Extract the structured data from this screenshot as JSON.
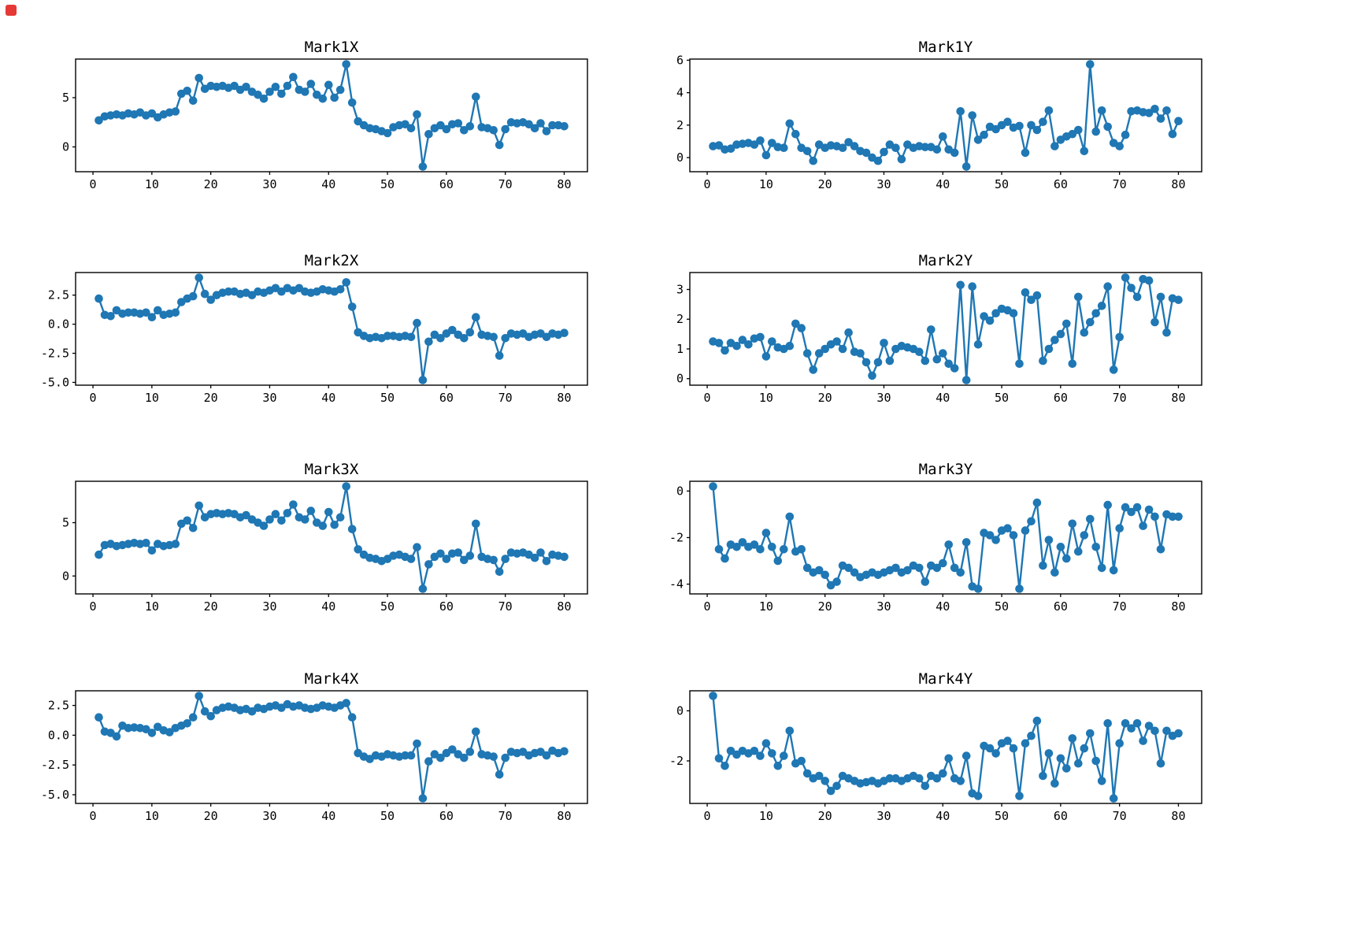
{
  "page": {
    "background": "#ffffff",
    "badge_color": "#e53935"
  },
  "chart_data": [
    {
      "id": "mark1x",
      "title": "Mark1X",
      "type": "line",
      "series_color": "#1f77b4",
      "grid": false,
      "legend": null,
      "x_start": 1,
      "xlim": [
        -2.95,
        83.95
      ],
      "xticks": [
        0,
        10,
        20,
        30,
        40,
        50,
        60,
        70,
        80
      ],
      "xtick_labels": [
        "0",
        "10",
        "20",
        "30",
        "40",
        "50",
        "60",
        "70",
        "80"
      ],
      "ylim": [
        -2.52,
        8.92
      ],
      "yticks": [
        0,
        5
      ],
      "ytick_labels": [
        "0",
        "5"
      ],
      "values": [
        2.7,
        3.1,
        3.2,
        3.3,
        3.2,
        3.4,
        3.3,
        3.5,
        3.2,
        3.4,
        3.0,
        3.3,
        3.5,
        3.6,
        5.4,
        5.7,
        4.7,
        7.0,
        5.9,
        6.2,
        6.1,
        6.2,
        6.0,
        6.2,
        5.8,
        6.1,
        5.6,
        5.3,
        4.9,
        5.6,
        6.1,
        5.4,
        6.2,
        7.1,
        5.8,
        5.6,
        6.4,
        5.3,
        4.9,
        6.3,
        5.0,
        5.8,
        8.4,
        4.5,
        2.6,
        2.2,
        1.9,
        1.8,
        1.6,
        1.4,
        2.0,
        2.2,
        2.3,
        1.9,
        3.3,
        -2.0,
        1.3,
        1.9,
        2.2,
        1.8,
        2.3,
        2.4,
        1.7,
        2.1,
        5.1,
        2.0,
        1.9,
        1.7,
        0.2,
        1.8,
        2.5,
        2.4,
        2.5,
        2.3,
        1.9,
        2.4,
        1.6,
        2.2,
        2.2,
        2.1
      ]
    },
    {
      "id": "mark1y",
      "title": "Mark1Y",
      "type": "line",
      "series_color": "#1f77b4",
      "grid": false,
      "legend": null,
      "x_start": 1,
      "xlim": [
        -2.95,
        83.95
      ],
      "xticks": [
        0,
        10,
        20,
        30,
        40,
        50,
        60,
        70,
        80
      ],
      "xtick_labels": [
        "0",
        "10",
        "20",
        "30",
        "40",
        "50",
        "60",
        "70",
        "80"
      ],
      "ylim": [
        -0.87,
        6.07
      ],
      "yticks": [
        0,
        2,
        4,
        6
      ],
      "ytick_labels": [
        "0",
        "2",
        "4",
        "6"
      ],
      "values": [
        0.7,
        0.75,
        0.5,
        0.55,
        0.8,
        0.85,
        0.9,
        0.8,
        1.05,
        0.15,
        0.9,
        0.65,
        0.6,
        2.1,
        1.45,
        0.6,
        0.4,
        -0.2,
        0.8,
        0.6,
        0.75,
        0.7,
        0.6,
        0.95,
        0.7,
        0.4,
        0.3,
        0.0,
        -0.2,
        0.35,
        0.8,
        0.6,
        -0.1,
        0.8,
        0.6,
        0.7,
        0.65,
        0.65,
        0.5,
        1.3,
        0.5,
        0.3,
        2.85,
        -0.55,
        2.6,
        1.1,
        1.4,
        1.9,
        1.75,
        2.0,
        2.2,
        1.85,
        1.95,
        0.3,
        2.0,
        1.7,
        2.2,
        2.9,
        0.7,
        1.1,
        1.3,
        1.45,
        1.7,
        0.4,
        5.75,
        1.6,
        2.9,
        1.9,
        0.9,
        0.7,
        1.4,
        2.85,
        2.9,
        2.8,
        2.75,
        3.0,
        2.4,
        2.9,
        1.45,
        2.25
      ]
    },
    {
      "id": "mark2x",
      "title": "Mark2X",
      "type": "line",
      "series_color": "#1f77b4",
      "grid": false,
      "legend": null,
      "x_start": 1,
      "xlim": [
        -2.95,
        83.95
      ],
      "xticks": [
        0,
        10,
        20,
        30,
        40,
        50,
        60,
        70,
        80
      ],
      "xtick_labels": [
        "0",
        "10",
        "20",
        "30",
        "40",
        "50",
        "60",
        "70",
        "80"
      ],
      "ylim": [
        -5.24,
        4.44
      ],
      "yticks": [
        2.5,
        0,
        -2.5,
        -5
      ],
      "ytick_labels": [
        "2.5",
        "0.0",
        "-2.5",
        "-5.0"
      ],
      "values": [
        2.2,
        0.8,
        0.7,
        1.2,
        0.9,
        1.0,
        1.0,
        0.9,
        1.0,
        0.6,
        1.2,
        0.8,
        0.9,
        1.0,
        1.9,
        2.2,
        2.4,
        4.0,
        2.6,
        2.1,
        2.5,
        2.7,
        2.8,
        2.8,
        2.6,
        2.7,
        2.5,
        2.8,
        2.7,
        2.9,
        3.1,
        2.8,
        3.1,
        2.9,
        3.1,
        2.8,
        2.7,
        2.8,
        3.0,
        2.9,
        2.8,
        3.0,
        3.6,
        1.5,
        -0.7,
        -1.0,
        -1.2,
        -1.1,
        -1.2,
        -1.0,
        -1.0,
        -1.1,
        -1.0,
        -1.1,
        0.1,
        -4.8,
        -1.5,
        -0.9,
        -1.2,
        -0.8,
        -0.5,
        -0.9,
        -1.2,
        -0.7,
        0.6,
        -0.9,
        -1.0,
        -1.1,
        -2.7,
        -1.2,
        -0.8,
        -0.9,
        -0.8,
        -1.1,
        -0.9,
        -0.8,
        -1.1,
        -0.8,
        -0.9,
        -0.75
      ]
    },
    {
      "id": "mark2y",
      "title": "Mark2Y",
      "type": "line",
      "series_color": "#1f77b4",
      "grid": false,
      "legend": null,
      "x_start": 1,
      "xlim": [
        -2.95,
        83.95
      ],
      "xticks": [
        0,
        10,
        20,
        30,
        40,
        50,
        60,
        70,
        80
      ],
      "xtick_labels": [
        "0",
        "10",
        "20",
        "30",
        "40",
        "50",
        "60",
        "70",
        "80"
      ],
      "ylim": [
        -0.22,
        3.57
      ],
      "yticks": [
        0,
        1,
        2,
        3
      ],
      "ytick_labels": [
        "0",
        "1",
        "2",
        "3"
      ],
      "values": [
        1.25,
        1.2,
        0.95,
        1.2,
        1.1,
        1.3,
        1.15,
        1.35,
        1.4,
        0.75,
        1.25,
        1.05,
        1.0,
        1.1,
        1.85,
        1.7,
        0.85,
        0.3,
        0.85,
        1.0,
        1.15,
        1.25,
        1.0,
        1.55,
        0.9,
        0.85,
        0.55,
        0.1,
        0.55,
        1.2,
        0.6,
        1.0,
        1.1,
        1.05,
        1.0,
        0.9,
        0.6,
        1.65,
        0.65,
        0.85,
        0.5,
        0.35,
        3.15,
        -0.05,
        3.1,
        1.15,
        2.1,
        1.95,
        2.2,
        2.35,
        2.3,
        2.2,
        0.5,
        2.9,
        2.65,
        2.8,
        0.6,
        1.0,
        1.3,
        1.5,
        1.85,
        0.5,
        2.75,
        1.55,
        1.9,
        2.2,
        2.45,
        3.1,
        0.3,
        1.4,
        3.4,
        3.05,
        2.75,
        3.35,
        3.3,
        1.9,
        2.75,
        1.55,
        2.7,
        2.65
      ]
    },
    {
      "id": "mark3x",
      "title": "Mark3X",
      "type": "line",
      "series_color": "#1f77b4",
      "grid": false,
      "legend": null,
      "x_start": 1,
      "xlim": [
        -2.95,
        83.95
      ],
      "xticks": [
        0,
        10,
        20,
        30,
        40,
        50,
        60,
        70,
        80
      ],
      "xtick_labels": [
        "0",
        "10",
        "20",
        "30",
        "40",
        "50",
        "60",
        "70",
        "80"
      ],
      "ylim": [
        -1.68,
        8.88
      ],
      "yticks": [
        0,
        5
      ],
      "ytick_labels": [
        "0",
        "5"
      ],
      "values": [
        2.0,
        2.9,
        3.0,
        2.8,
        2.9,
        3.0,
        3.1,
        3.0,
        3.1,
        2.4,
        3.0,
        2.8,
        2.9,
        3.0,
        4.9,
        5.2,
        4.5,
        6.6,
        5.5,
        5.8,
        5.9,
        5.8,
        5.9,
        5.8,
        5.5,
        5.7,
        5.3,
        5.0,
        4.7,
        5.3,
        5.8,
        5.2,
        5.9,
        6.7,
        5.5,
        5.3,
        6.1,
        5.0,
        4.7,
        6.0,
        4.8,
        5.5,
        8.4,
        4.4,
        2.5,
        2.0,
        1.7,
        1.6,
        1.4,
        1.6,
        1.9,
        2.0,
        1.8,
        1.6,
        2.7,
        -1.2,
        1.1,
        1.8,
        2.1,
        1.6,
        2.1,
        2.2,
        1.5,
        1.9,
        4.9,
        1.8,
        1.6,
        1.5,
        0.4,
        1.6,
        2.2,
        2.1,
        2.2,
        2.0,
        1.7,
        2.2,
        1.4,
        2.0,
        1.9,
        1.8
      ]
    },
    {
      "id": "mark3y",
      "title": "Mark3Y",
      "type": "line",
      "series_color": "#1f77b4",
      "grid": false,
      "legend": null,
      "x_start": 1,
      "xlim": [
        -2.95,
        83.95
      ],
      "xticks": [
        0,
        10,
        20,
        30,
        40,
        50,
        60,
        70,
        80
      ],
      "xtick_labels": [
        "0",
        "10",
        "20",
        "30",
        "40",
        "50",
        "60",
        "70",
        "80"
      ],
      "ylim": [
        -4.42,
        0.42
      ],
      "yticks": [
        0,
        -2,
        -4
      ],
      "ytick_labels": [
        "0",
        "-2",
        "-4"
      ],
      "values": [
        0.2,
        -2.5,
        -2.9,
        -2.3,
        -2.4,
        -2.2,
        -2.4,
        -2.3,
        -2.5,
        -1.8,
        -2.4,
        -3.0,
        -2.5,
        -1.1,
        -2.6,
        -2.5,
        -3.3,
        -3.5,
        -3.4,
        -3.6,
        -4.05,
        -3.9,
        -3.2,
        -3.3,
        -3.5,
        -3.7,
        -3.6,
        -3.5,
        -3.6,
        -3.5,
        -3.4,
        -3.3,
        -3.5,
        -3.4,
        -3.2,
        -3.3,
        -3.9,
        -3.2,
        -3.3,
        -3.1,
        -2.3,
        -3.3,
        -3.5,
        -2.2,
        -4.1,
        -4.2,
        -1.8,
        -1.9,
        -2.1,
        -1.7,
        -1.6,
        -1.9,
        -4.2,
        -1.7,
        -1.3,
        -0.5,
        -3.2,
        -2.1,
        -3.5,
        -2.4,
        -2.9,
        -1.4,
        -2.6,
        -1.9,
        -1.2,
        -2.4,
        -3.3,
        -0.6,
        -3.4,
        -1.6,
        -0.7,
        -0.9,
        -0.7,
        -1.5,
        -0.8,
        -1.1,
        -2.5,
        -1.0,
        -1.1,
        -1.1
      ]
    },
    {
      "id": "mark4x",
      "title": "Mark4X",
      "type": "line",
      "series_color": "#1f77b4",
      "grid": false,
      "legend": null,
      "x_start": 1,
      "xlim": [
        -2.95,
        83.95
      ],
      "xticks": [
        0,
        10,
        20,
        30,
        40,
        50,
        60,
        70,
        80
      ],
      "xtick_labels": [
        "0",
        "10",
        "20",
        "30",
        "40",
        "50",
        "60",
        "70",
        "80"
      ],
      "ylim": [
        -5.73,
        3.73
      ],
      "yticks": [
        2.5,
        0,
        -2.5,
        -5
      ],
      "ytick_labels": [
        "2.5",
        "0.0",
        "-2.5",
        "-5.0"
      ],
      "values": [
        1.5,
        0.3,
        0.2,
        -0.1,
        0.8,
        0.6,
        0.65,
        0.6,
        0.5,
        0.2,
        0.7,
        0.4,
        0.25,
        0.6,
        0.8,
        1.0,
        1.5,
        3.3,
        2.0,
        1.6,
        2.1,
        2.3,
        2.4,
        2.3,
        2.1,
        2.2,
        2.0,
        2.3,
        2.2,
        2.4,
        2.5,
        2.3,
        2.6,
        2.4,
        2.5,
        2.3,
        2.2,
        2.3,
        2.5,
        2.4,
        2.3,
        2.5,
        2.7,
        1.5,
        -1.5,
        -1.8,
        -2.0,
        -1.7,
        -1.8,
        -1.6,
        -1.7,
        -1.8,
        -1.7,
        -1.7,
        -0.7,
        -5.3,
        -2.2,
        -1.6,
        -1.9,
        -1.5,
        -1.2,
        -1.6,
        -1.9,
        -1.4,
        0.3,
        -1.6,
        -1.7,
        -1.8,
        -3.3,
        -1.9,
        -1.4,
        -1.5,
        -1.4,
        -1.7,
        -1.5,
        -1.4,
        -1.7,
        -1.3,
        -1.5,
        -1.35
      ]
    },
    {
      "id": "mark4y",
      "title": "Mark4Y",
      "type": "line",
      "series_color": "#1f77b4",
      "grid": false,
      "legend": null,
      "x_start": 1,
      "xlim": [
        -2.95,
        83.95
      ],
      "xticks": [
        0,
        10,
        20,
        30,
        40,
        50,
        60,
        70,
        80
      ],
      "xtick_labels": [
        "0",
        "10",
        "20",
        "30",
        "40",
        "50",
        "60",
        "70",
        "80"
      ],
      "ylim": [
        -3.7,
        0.8
      ],
      "yticks": [
        0,
        -2
      ],
      "ytick_labels": [
        "0",
        "-2"
      ],
      "values": [
        0.6,
        -1.9,
        -2.2,
        -1.6,
        -1.75,
        -1.6,
        -1.7,
        -1.6,
        -1.8,
        -1.3,
        -1.7,
        -2.2,
        -1.8,
        -0.8,
        -2.1,
        -2.0,
        -2.5,
        -2.7,
        -2.6,
        -2.8,
        -3.2,
        -3.0,
        -2.6,
        -2.7,
        -2.8,
        -2.9,
        -2.85,
        -2.8,
        -2.9,
        -2.8,
        -2.7,
        -2.7,
        -2.8,
        -2.7,
        -2.6,
        -2.7,
        -3.0,
        -2.6,
        -2.7,
        -2.5,
        -1.9,
        -2.7,
        -2.8,
        -1.8,
        -3.3,
        -3.4,
        -1.4,
        -1.5,
        -1.7,
        -1.3,
        -1.2,
        -1.5,
        -3.4,
        -1.3,
        -1.0,
        -0.4,
        -2.6,
        -1.7,
        -2.9,
        -1.9,
        -2.3,
        -1.1,
        -2.1,
        -1.5,
        -0.9,
        -2.0,
        -2.8,
        -0.5,
        -3.5,
        -1.3,
        -0.5,
        -0.7,
        -0.5,
        -1.2,
        -0.6,
        -0.8,
        -2.1,
        -0.8,
        -1.0,
        -0.9
      ]
    }
  ]
}
